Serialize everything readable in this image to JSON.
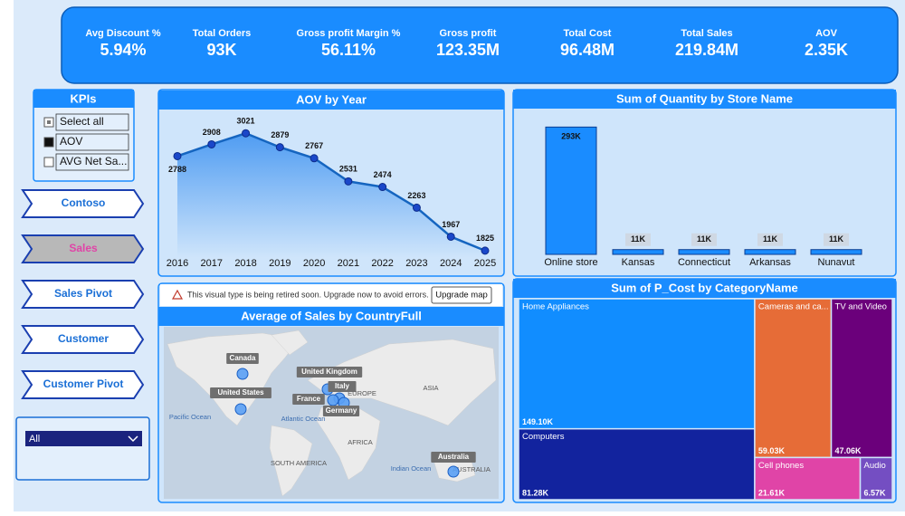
{
  "kpis": [
    {
      "label": "Avg Discount %",
      "value": "5.94%"
    },
    {
      "label": "Total Orders",
      "value": "93K"
    },
    {
      "label": "Gross profit Margin %",
      "value": "56.11%"
    },
    {
      "label": "Gross profit",
      "value": "123.35M"
    },
    {
      "label": "Total Cost",
      "value": "96.48M"
    },
    {
      "label": "Total Sales",
      "value": "219.84M"
    },
    {
      "label": "AOV",
      "value": "2.35K"
    }
  ],
  "slicer": {
    "title": "KPIs",
    "items": [
      "Select all",
      "AOV",
      "AVG Net Sa..."
    ]
  },
  "nav": [
    "Contoso",
    "Sales",
    "Sales Pivot",
    "Customer",
    "Customer Pivot"
  ],
  "dropdown": "All",
  "chart_data": [
    {
      "type": "area",
      "title": "AOV by Year",
      "x": [
        2016,
        2017,
        2018,
        2019,
        2020,
        2021,
        2022,
        2023,
        2024,
        2025
      ],
      "values": [
        2788,
        2908,
        3021,
        2879,
        2767,
        2531,
        2474,
        2263,
        1967,
        1825
      ],
      "color": "#1565c0",
      "xlim": [
        2016,
        2025
      ],
      "xticks": [
        2016,
        2017,
        2018,
        2019,
        2020,
        2021,
        2022,
        2023,
        2024,
        2025
      ],
      "ylim": [
        1750,
        3180
      ]
    },
    {
      "type": "bar",
      "title": "Sum of Quantity by Store Name",
      "categories": [
        "Online store",
        "Kansas",
        "Connecticut",
        "Arkansas",
        "Nunavut"
      ],
      "values": [
        293000,
        11000,
        11000,
        11000,
        11000
      ],
      "value_labels": [
        "293K",
        "11K",
        "11K",
        "11K",
        "11K"
      ],
      "color": "#1a8cff",
      "ylim": [
        0,
        300000
      ]
    },
    {
      "type": "treemap",
      "title": "Sum of P_Cost by CategoryName",
      "categories": [
        "Home Appliances",
        "Computers",
        "Cameras and ca...",
        "TV and Video",
        "Cell phones",
        "Audio"
      ],
      "values": [
        149100,
        81280,
        59030,
        47060,
        21610,
        6570
      ],
      "value_labels": [
        "149.10K",
        "81.28K",
        "59.03K",
        "47.06K",
        "21.61K",
        "6.57K"
      ],
      "colors": [
        "#118dff",
        "#12239e",
        "#e66c37",
        "#6b007b",
        "#e044a7",
        "#744ec2"
      ]
    }
  ],
  "map": {
    "title": "Average of Sales by CountryFull",
    "notice": "This visual type is being retired soon. Upgrade now to avoid errors.",
    "button": "Upgrade map",
    "places": [
      "Pacific Ocean",
      "Atlantic Ocean",
      "EUROPE",
      "ASIA",
      "AFRICA",
      "SOUTH AMERICA",
      "Indian Ocean",
      "AUSTRALIA"
    ],
    "countries": [
      "Canada",
      "United States",
      "United Kingdom",
      "Italy",
      "France",
      "Germany",
      "Australia"
    ]
  }
}
